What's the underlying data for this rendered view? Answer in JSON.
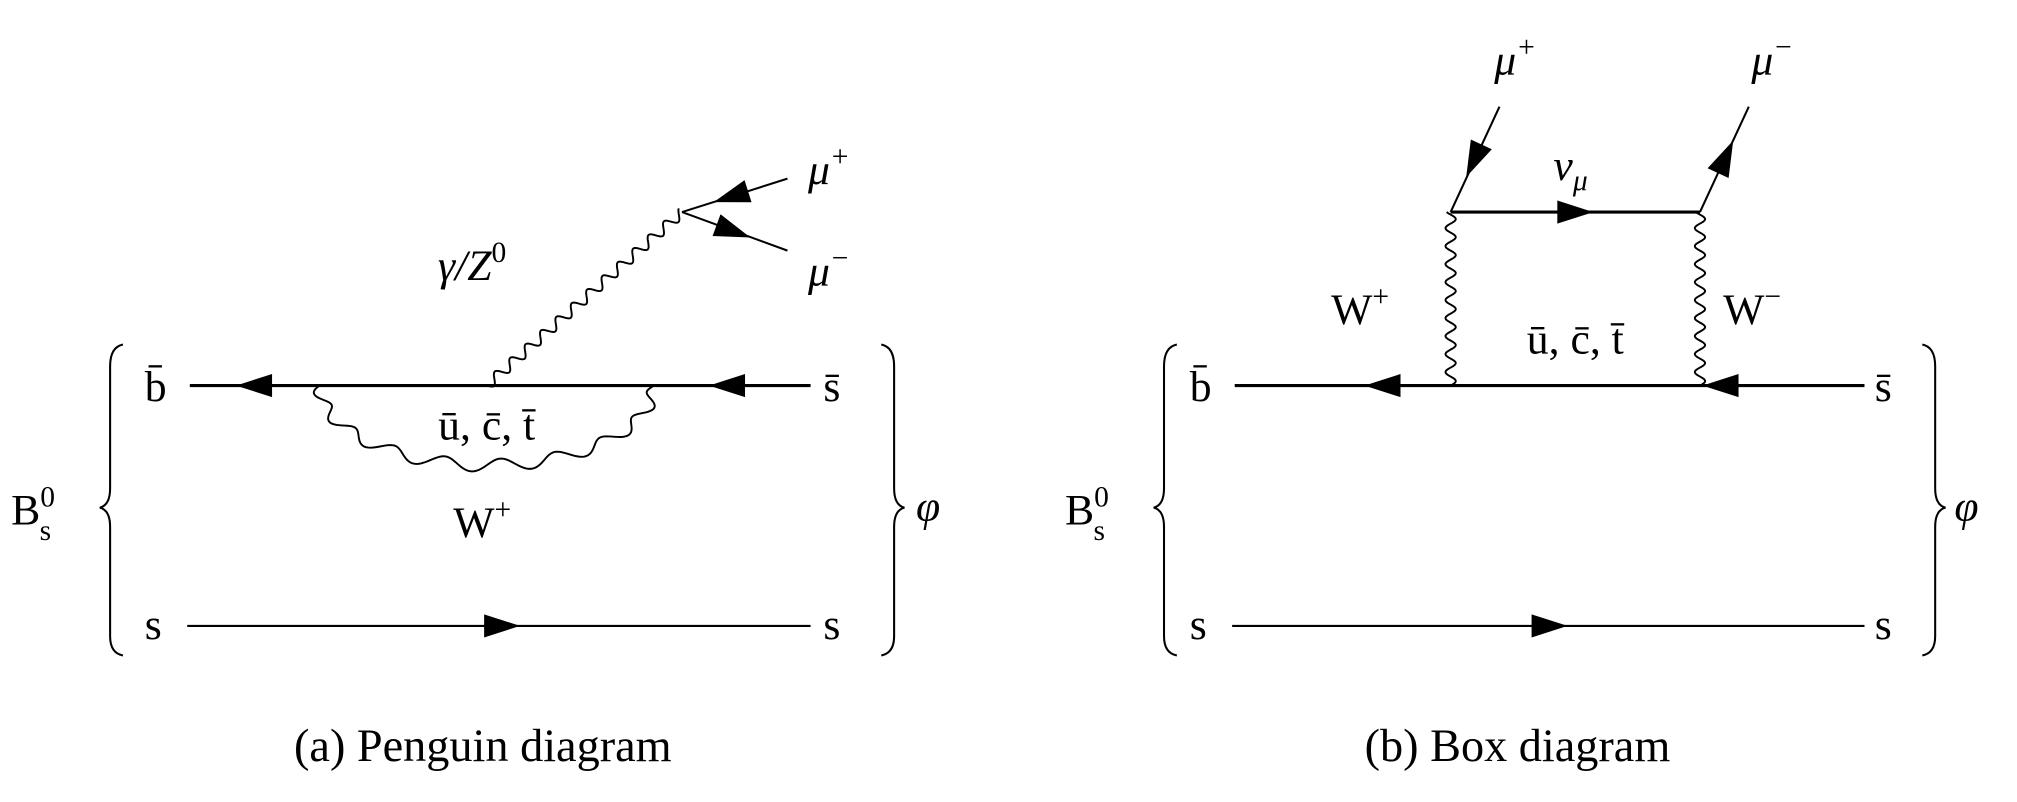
{
  "panels": [
    {
      "caption": "(a) Penguin diagram",
      "meson_in": {
        "base": "B",
        "sub": "s",
        "sup": "0"
      },
      "meson_out": "φ",
      "quark_top_left": "b̄",
      "quark_top_right": "s̄",
      "quark_bottom_left": "s",
      "quark_bottom_right": "s",
      "boson_exchange": {
        "base": "W",
        "sup": "+"
      },
      "internal_quarks": "ū, c̄, t̄",
      "boson_emitted": {
        "base": "γ/Z",
        "sup": "0"
      },
      "lepton_1": {
        "base": "μ",
        "sup": "+"
      },
      "lepton_2": {
        "base": "μ",
        "sup": "−"
      }
    },
    {
      "caption": "(b) Box diagram",
      "meson_in": {
        "base": "B",
        "sub": "s",
        "sup": "0"
      },
      "meson_out": "φ",
      "quark_top_left": "b̄",
      "quark_top_right": "s̄",
      "quark_bottom_left": "s",
      "quark_bottom_right": "s",
      "boson_left": {
        "base": "W",
        "sup": "+"
      },
      "boson_right": {
        "base": "W",
        "sup": "−"
      },
      "internal_quarks": "ū, c̄, t̄",
      "neutrino": {
        "base": "ν",
        "sub": "μ"
      },
      "lepton_1": {
        "base": "μ",
        "sup": "+"
      },
      "lepton_2": {
        "base": "μ",
        "sup": "−"
      }
    }
  ]
}
